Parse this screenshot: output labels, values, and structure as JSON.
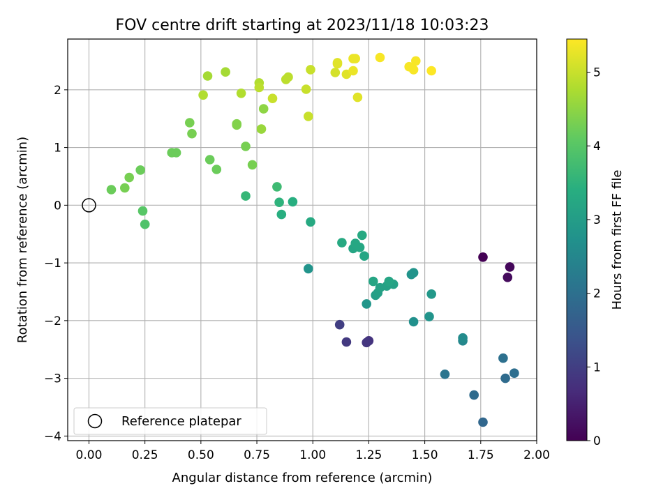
{
  "chart_data": {
    "type": "scatter",
    "title": "FOV centre drift starting at 2023/11/18 10:03:23",
    "xlabel": "Angular distance from reference (arcmin)",
    "ylabel": "Rotation from reference (arcmin)",
    "colorbar_label": "Hours from first FF file",
    "colormap": "viridis",
    "xlim": [
      -0.095,
      2.0
    ],
    "ylim": [
      -4.08,
      2.88
    ],
    "clim": [
      0,
      5.45
    ],
    "x_ticks": [
      0.0,
      0.25,
      0.5,
      0.75,
      1.0,
      1.25,
      1.5,
      1.75,
      2.0
    ],
    "x_tick_labels": [
      "0.00",
      "0.25",
      "0.50",
      "0.75",
      "1.00",
      "1.25",
      "1.50",
      "1.75",
      "2.00"
    ],
    "y_ticks": [
      -4,
      -3,
      -2,
      -1,
      0,
      1,
      2
    ],
    "y_tick_labels": [
      "−4",
      "−3",
      "−2",
      "−1",
      "0",
      "1",
      "2"
    ],
    "colorbar_ticks": [
      0,
      1,
      2,
      3,
      4,
      5
    ],
    "colorbar_tick_labels": [
      "0",
      "1",
      "2",
      "3",
      "4",
      "5"
    ],
    "grid": true,
    "legend_position": "lower-left",
    "legend": [
      {
        "label": "Reference platepar",
        "marker": "open-circle",
        "color": "#000000"
      }
    ],
    "reference_point": {
      "x": 0.0,
      "y": 0.0
    },
    "series": [
      {
        "points": [
          [
            1.76,
            -0.9,
            0.0
          ],
          [
            1.88,
            -1.07,
            0.1
          ],
          [
            1.87,
            -1.25,
            0.15
          ],
          [
            1.25,
            -2.35,
            0.8
          ],
          [
            1.24,
            -2.38,
            0.85
          ],
          [
            1.15,
            -2.37,
            0.9
          ],
          [
            1.12,
            -2.07,
            1.0
          ],
          [
            1.76,
            -3.76,
            1.8
          ],
          [
            1.72,
            -3.29,
            1.9
          ],
          [
            1.86,
            -3.0,
            1.9
          ],
          [
            1.9,
            -2.91,
            1.95
          ],
          [
            1.85,
            -2.65,
            2.0
          ],
          [
            1.59,
            -2.93,
            2.1
          ],
          [
            1.67,
            -2.35,
            2.5
          ],
          [
            1.67,
            -2.3,
            2.6
          ],
          [
            1.45,
            -2.02,
            2.7
          ],
          [
            1.52,
            -1.93,
            2.8
          ],
          [
            1.24,
            -1.71,
            2.85
          ],
          [
            0.98,
            -1.1,
            2.8
          ],
          [
            1.45,
            -1.17,
            2.8
          ],
          [
            1.44,
            -1.2,
            2.8
          ],
          [
            1.53,
            -1.54,
            2.9
          ],
          [
            1.28,
            -1.56,
            3.0
          ],
          [
            1.29,
            -1.52,
            3.05
          ],
          [
            1.3,
            -1.43,
            3.1
          ],
          [
            1.33,
            -1.4,
            3.1
          ],
          [
            1.36,
            -1.37,
            3.1
          ],
          [
            1.34,
            -1.32,
            3.2
          ],
          [
            1.27,
            -1.32,
            3.2
          ],
          [
            1.23,
            -0.88,
            3.2
          ],
          [
            1.18,
            -0.75,
            3.2
          ],
          [
            1.21,
            -0.73,
            3.25
          ],
          [
            1.19,
            -0.66,
            3.25
          ],
          [
            1.13,
            -0.65,
            3.3
          ],
          [
            1.22,
            -0.52,
            3.3
          ],
          [
            0.99,
            -0.29,
            3.3
          ],
          [
            0.86,
            -0.16,
            3.4
          ],
          [
            0.91,
            0.06,
            3.4
          ],
          [
            0.85,
            0.05,
            3.5
          ],
          [
            0.7,
            0.16,
            3.6
          ],
          [
            0.84,
            0.32,
            3.7
          ],
          [
            0.25,
            -0.33,
            3.9
          ],
          [
            0.24,
            -0.1,
            4.0
          ],
          [
            0.1,
            0.27,
            4.2
          ],
          [
            0.16,
            0.3,
            4.3
          ],
          [
            0.18,
            0.48,
            4.3
          ],
          [
            0.23,
            0.61,
            4.2
          ],
          [
            0.57,
            0.62,
            4.2
          ],
          [
            0.54,
            0.79,
            4.2
          ],
          [
            0.73,
            0.7,
            4.3
          ],
          [
            0.7,
            1.02,
            4.3
          ],
          [
            0.37,
            0.91,
            4.2
          ],
          [
            0.39,
            0.91,
            4.2
          ],
          [
            0.45,
            1.43,
            4.3
          ],
          [
            0.46,
            1.24,
            4.3
          ],
          [
            0.66,
            1.39,
            4.4
          ],
          [
            0.66,
            1.41,
            4.4
          ],
          [
            0.78,
            1.67,
            4.5
          ],
          [
            0.77,
            1.32,
            4.6
          ],
          [
            0.51,
            1.91,
            4.8
          ],
          [
            0.53,
            2.24,
            4.7
          ],
          [
            0.61,
            2.31,
            4.7
          ],
          [
            0.68,
            1.94,
            4.8
          ],
          [
            0.76,
            2.12,
            4.8
          ],
          [
            0.76,
            2.04,
            4.9
          ],
          [
            0.82,
            1.85,
            5.0
          ],
          [
            0.88,
            2.18,
            4.9
          ],
          [
            0.89,
            2.22,
            4.9
          ],
          [
            0.97,
            2.01,
            5.0
          ],
          [
            0.98,
            1.54,
            5.0
          ],
          [
            0.99,
            2.35,
            5.0
          ],
          [
            1.1,
            2.3,
            5.1
          ],
          [
            1.11,
            2.47,
            5.2
          ],
          [
            1.11,
            2.45,
            5.2
          ],
          [
            1.15,
            2.27,
            5.2
          ],
          [
            1.18,
            2.54,
            5.3
          ],
          [
            1.19,
            2.54,
            5.3
          ],
          [
            1.18,
            2.33,
            5.3
          ],
          [
            1.2,
            1.87,
            5.2
          ],
          [
            1.3,
            2.56,
            5.4
          ],
          [
            1.43,
            2.4,
            5.4
          ],
          [
            1.45,
            2.35,
            5.4
          ],
          [
            1.46,
            2.5,
            5.4
          ],
          [
            1.53,
            2.33,
            5.45
          ]
        ]
      }
    ]
  }
}
